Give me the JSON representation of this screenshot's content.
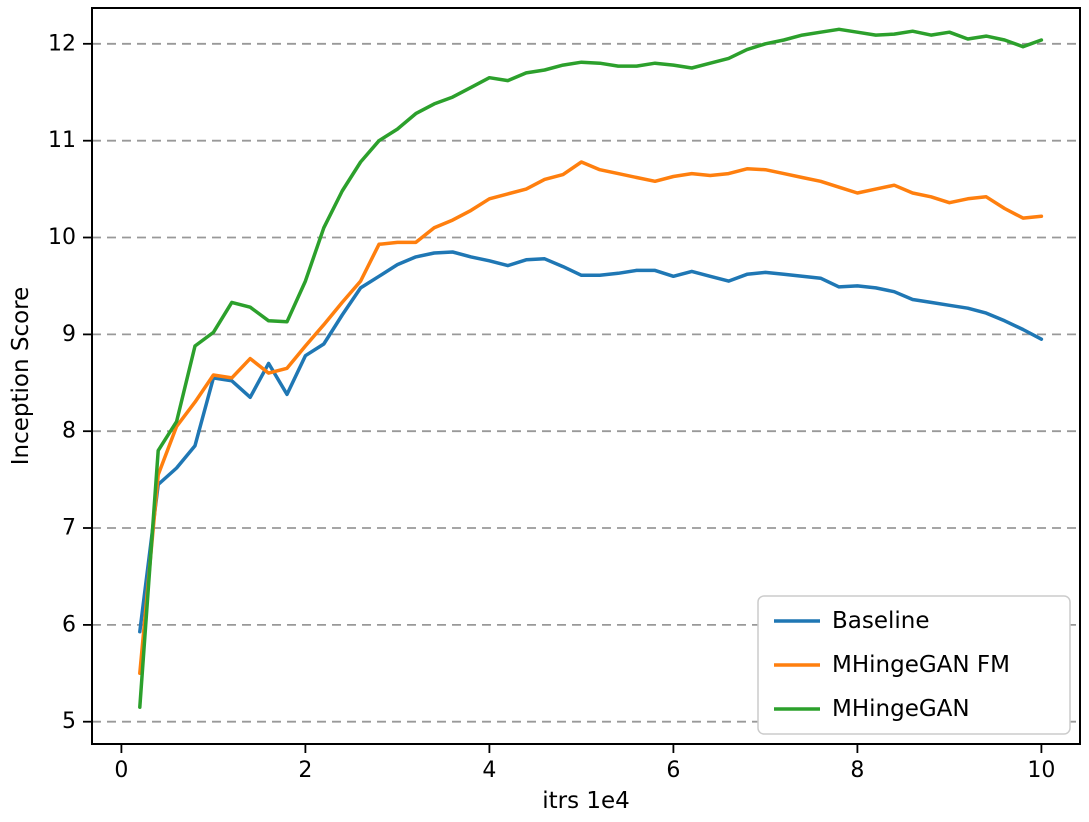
{
  "chart_data": {
    "type": "line",
    "title": "",
    "xlabel": "itrs 1e4",
    "ylabel": "Inception Score",
    "xlim": [
      -0.32,
      10.42
    ],
    "ylim": [
      4.77,
      12.37
    ],
    "xticks": [
      0,
      2,
      4,
      6,
      8,
      10
    ],
    "yticks": [
      5,
      6,
      7,
      8,
      9,
      10,
      11,
      12
    ],
    "grid": "horizontal-dashed",
    "grid_color": "#999999",
    "axes_color": "#000000",
    "legend_position": "lower right",
    "x": [
      0.2,
      0.4,
      0.6,
      0.8,
      1.0,
      1.2,
      1.4,
      1.6,
      1.8,
      2.0,
      2.2,
      2.4,
      2.6,
      2.8,
      3.0,
      3.2,
      3.4,
      3.6,
      3.8,
      4.0,
      4.2,
      4.4,
      4.6,
      4.8,
      5.0,
      5.2,
      5.4,
      5.6,
      5.8,
      6.0,
      6.2,
      6.4,
      6.6,
      6.8,
      7.0,
      7.2,
      7.4,
      7.6,
      7.8,
      8.0,
      8.2,
      8.4,
      8.6,
      8.8,
      9.0,
      9.2,
      9.4,
      9.6,
      9.8,
      10.0
    ],
    "series": [
      {
        "name": "Baseline",
        "color": "#1f77b4",
        "values": [
          5.93,
          7.45,
          7.62,
          7.85,
          8.55,
          8.52,
          8.35,
          8.7,
          8.38,
          8.78,
          8.9,
          9.2,
          9.48,
          9.6,
          9.72,
          9.8,
          9.84,
          9.85,
          9.8,
          9.76,
          9.71,
          9.77,
          9.78,
          9.7,
          9.61,
          9.61,
          9.63,
          9.66,
          9.66,
          9.6,
          9.65,
          9.6,
          9.55,
          9.62,
          9.64,
          9.62,
          9.6,
          9.58,
          9.49,
          9.5,
          9.48,
          9.44,
          9.36,
          9.33,
          9.3,
          9.27,
          9.22,
          9.14,
          9.05,
          8.95
        ]
      },
      {
        "name": "MHingeGAN FM",
        "color": "#ff7f0e",
        "values": [
          5.5,
          7.55,
          8.05,
          8.3,
          8.58,
          8.55,
          8.75,
          8.6,
          8.65,
          8.88,
          9.1,
          9.33,
          9.55,
          9.93,
          9.95,
          9.95,
          10.1,
          10.18,
          10.28,
          10.4,
          10.45,
          10.5,
          10.6,
          10.65,
          10.78,
          10.7,
          10.66,
          10.62,
          10.58,
          10.63,
          10.66,
          10.64,
          10.66,
          10.71,
          10.7,
          10.66,
          10.62,
          10.58,
          10.52,
          10.46,
          10.5,
          10.54,
          10.46,
          10.42,
          10.36,
          10.4,
          10.42,
          10.3,
          10.2,
          10.22
        ]
      },
      {
        "name": "MHingeGAN",
        "color": "#2ca02c",
        "values": [
          5.15,
          7.8,
          8.1,
          8.88,
          9.02,
          9.33,
          9.28,
          9.14,
          9.13,
          9.55,
          10.1,
          10.48,
          10.78,
          11.0,
          11.12,
          11.28,
          11.38,
          11.45,
          11.55,
          11.65,
          11.62,
          11.7,
          11.73,
          11.78,
          11.81,
          11.8,
          11.77,
          11.77,
          11.8,
          11.78,
          11.75,
          11.8,
          11.85,
          11.94,
          12.0,
          12.04,
          12.09,
          12.12,
          12.15,
          12.12,
          12.09,
          12.1,
          12.13,
          12.09,
          12.12,
          12.05,
          12.08,
          12.04,
          11.97,
          12.04
        ]
      }
    ]
  }
}
